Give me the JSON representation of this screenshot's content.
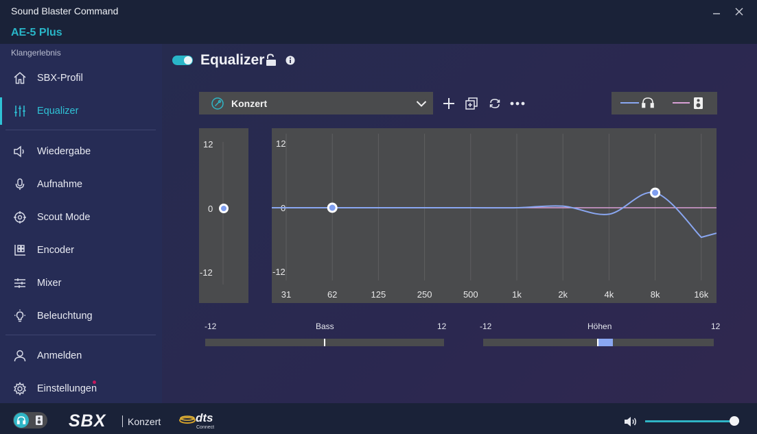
{
  "window": {
    "app_title": "Sound Blaster Command",
    "device_name": "AE-5 Plus"
  },
  "sidebar": {
    "section_label": "Klangerlebnis",
    "items": [
      {
        "label": "SBX-Profil",
        "icon": "home-icon"
      },
      {
        "label": "Equalizer",
        "icon": "equalizer-sliders-icon",
        "active": true
      },
      {
        "label": "Wiedergabe",
        "icon": "speaker-icon"
      },
      {
        "label": "Aufnahme",
        "icon": "microphone-icon"
      },
      {
        "label": "Scout Mode",
        "icon": "crosshair-icon"
      },
      {
        "label": "Encoder",
        "icon": "encoder-icon"
      },
      {
        "label": "Mixer",
        "icon": "mixer-icon"
      },
      {
        "label": "Beleuchtung",
        "icon": "lightbulb-icon"
      },
      {
        "label": "Anmelden",
        "icon": "user-icon"
      },
      {
        "label": "Einstellungen",
        "icon": "gear-icon",
        "notification_dot": true
      }
    ]
  },
  "main": {
    "title": "Equalizer",
    "enabled": true,
    "preset": {
      "value": "Konzert"
    },
    "preamp": {
      "axis_labels": [
        "12",
        "0",
        "-12"
      ],
      "value_db": 0
    },
    "bass": {
      "label": "Bass",
      "min_label": "-12",
      "max_label": "12",
      "value": 0
    },
    "treble": {
      "label": "Höhen",
      "min_label": "-12",
      "max_label": "12",
      "value": 1.5
    },
    "colors": {
      "accent": "#2fb5c6",
      "headphone_curve": "#8aa7f2",
      "speaker_curve": "#d9a0d6",
      "panel_bg": "#4a4b4d"
    }
  },
  "chart_data": {
    "type": "line",
    "x": [
      "31",
      "62",
      "125",
      "250",
      "500",
      "1k",
      "2k",
      "4k",
      "8k",
      "16k"
    ],
    "ylim": [
      -12,
      12
    ],
    "ytick_labels": [
      "12",
      "0",
      "-12"
    ],
    "grid": true,
    "series": [
      {
        "values": [
          0,
          0,
          0,
          0,
          0,
          0,
          0.3,
          -1.2,
          2.8,
          -5.5
        ]
      },
      {
        "values": [
          0,
          0,
          0,
          0,
          0,
          0,
          0,
          0,
          0,
          0
        ]
      }
    ],
    "highlighted_points": [
      {
        "x": "62",
        "y": 0
      },
      {
        "x": "8k",
        "y": 2.8
      }
    ]
  },
  "bottombar": {
    "sbx_logo": "SBX",
    "preset_value": "Konzert",
    "dts_logo": "dts",
    "dts_sub": "Connect",
    "volume_level": 0.95
  }
}
